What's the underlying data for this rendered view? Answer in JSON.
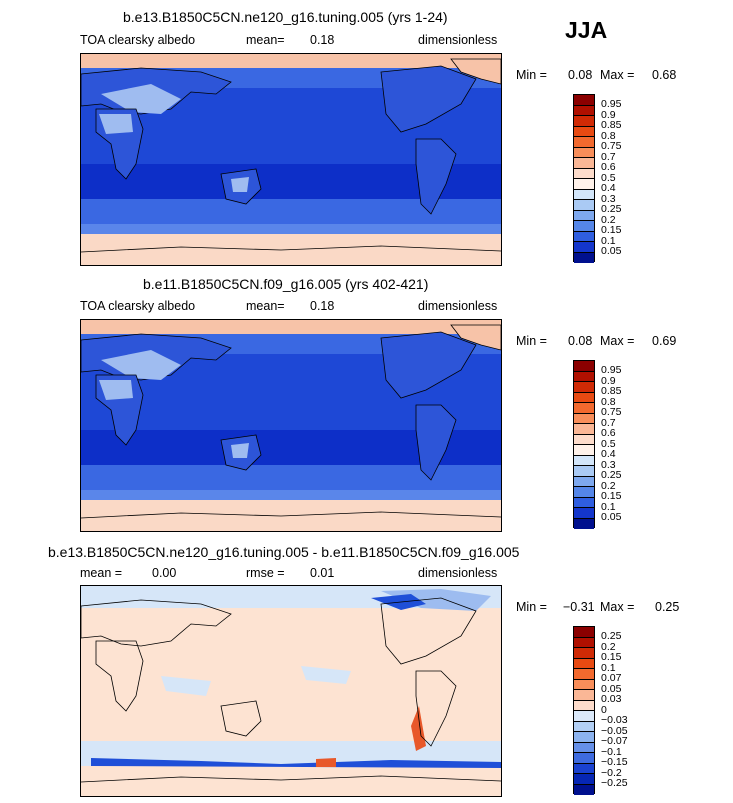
{
  "season": "JJA",
  "panels": [
    {
      "title": "b.e13.B1850C5CN.ne120_g16.tuning.005 (yrs 1-24)",
      "variable": "TOA clearsky albedo",
      "mean_label": "mean=",
      "mean_value": "0.18",
      "units": "dimensionless",
      "min_label": "Min =",
      "min_value": "0.08",
      "max_label": "Max =",
      "max_value": "0.68",
      "colorbar": {
        "labels": [
          "0.95",
          "0.9",
          "0.85",
          "0.8",
          "0.75",
          "0.7",
          "0.6",
          "0.5",
          "0.4",
          "0.3",
          "0.25",
          "0.2",
          "0.15",
          "0.1",
          "0.05"
        ],
        "colors": [
          "#8b0000",
          "#b01000",
          "#d02a05",
          "#e84a12",
          "#f2692e",
          "#f88e5a",
          "#fab796",
          "#fddccb",
          "#fff2ea",
          "#d3e6fa",
          "#aacaf4",
          "#7ea8ee",
          "#5586e8",
          "#2f5ee0",
          "#1436cc",
          "#00108e"
        ]
      },
      "map_colors": {
        "ocean_deep": "#0d2fc8",
        "ocean": "#1e48d6",
        "ocean_mid": "#3a68e2",
        "band_light": "#5a86ea",
        "polar": "#f7c3a8",
        "land": "#2d55d8",
        "desert": "#9fbcf0",
        "ice": "#fad9c6"
      }
    },
    {
      "title": "b.e11.B1850C5CN.f09_g16.005 (yrs 402-421)",
      "variable": "TOA clearsky albedo",
      "mean_label": "mean=",
      "mean_value": "0.18",
      "units": "dimensionless",
      "min_label": "Min =",
      "min_value": "0.08",
      "max_label": "Max =",
      "max_value": "0.69",
      "colorbar": {
        "labels": [
          "0.95",
          "0.9",
          "0.85",
          "0.8",
          "0.75",
          "0.7",
          "0.6",
          "0.5",
          "0.4",
          "0.3",
          "0.25",
          "0.2",
          "0.15",
          "0.1",
          "0.05"
        ],
        "colors": [
          "#8b0000",
          "#b01000",
          "#d02a05",
          "#e84a12",
          "#f2692e",
          "#f88e5a",
          "#fab796",
          "#fddccb",
          "#fff2ea",
          "#d3e6fa",
          "#aacaf4",
          "#7ea8ee",
          "#5586e8",
          "#2f5ee0",
          "#1436cc",
          "#00108e"
        ]
      },
      "map_colors": {
        "ocean_deep": "#0d2fc8",
        "ocean": "#1e48d6",
        "ocean_mid": "#3a68e2",
        "band_light": "#5a86ea",
        "polar": "#f7c3a8",
        "land": "#2d55d8",
        "desert": "#9fbcf0",
        "ice": "#fad9c6"
      }
    },
    {
      "title": "b.e13.B1850C5CN.ne120_g16.tuning.005 - b.e11.B1850C5CN.f09_g16.005",
      "mean_label": "mean =",
      "mean_value": "0.00",
      "rmse_label": "rmse =",
      "rmse_value": "0.01",
      "units": "dimensionless",
      "min_label": "Min =",
      "min_value": "−0.31",
      "max_label": "Max =",
      "max_value": "0.25",
      "colorbar": {
        "labels": [
          "0.25",
          "0.2",
          "0.15",
          "0.1",
          "0.07",
          "0.05",
          "0.03",
          "0",
          "−0.03",
          "−0.05",
          "−0.07",
          "−0.1",
          "−0.15",
          "−0.2",
          "−0.25"
        ],
        "colors": [
          "#8b0000",
          "#b01000",
          "#d02a05",
          "#e84a12",
          "#f2692e",
          "#f88e5a",
          "#fab796",
          "#fddccb",
          "#dbe9fa",
          "#b3d0f5",
          "#8cb3ef",
          "#6690e8",
          "#3e6be0",
          "#1a42d0",
          "#0626b4",
          "#00108e"
        ]
      },
      "map_colors": {
        "background": "#fde3d2",
        "light_blue": "#d6e6f8",
        "mid_blue": "#9dbcf0",
        "strong_blue": "#1f4fd8",
        "red": "#e8582a"
      }
    }
  ]
}
